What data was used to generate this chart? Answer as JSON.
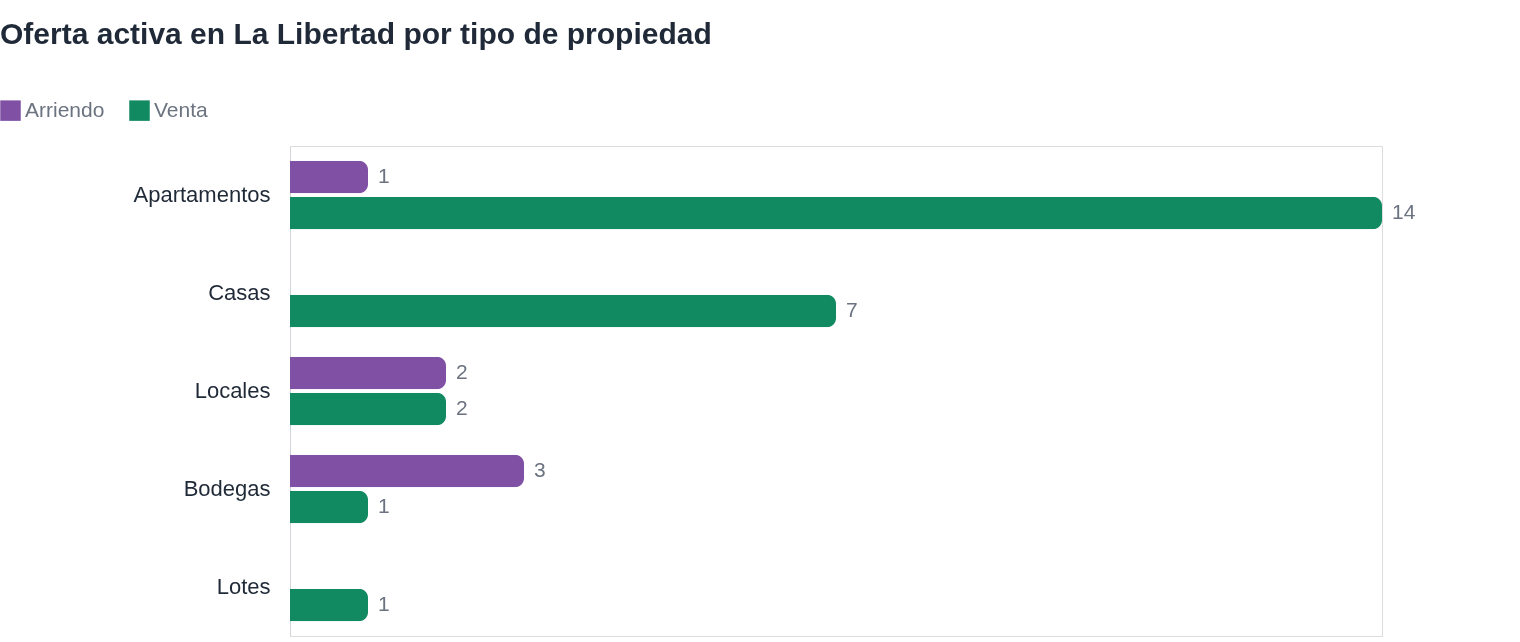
{
  "chart_data": {
    "type": "bar",
    "title": "Oferta activa en La Libertad por tipo de propiedad",
    "orientation": "horizontal",
    "data_labels": true,
    "legend": "top left",
    "categories": [
      "Apartamentos",
      "Casas",
      "Locales",
      "Bodegas",
      "Lotes"
    ],
    "series": [
      {
        "name": "Arriendo",
        "color": "#7f50a4",
        "values": [
          1,
          null,
          2,
          3,
          null
        ]
      },
      {
        "name": "Venta",
        "color": "#118a62",
        "values": [
          14,
          7,
          2,
          1,
          1
        ]
      }
    ]
  }
}
